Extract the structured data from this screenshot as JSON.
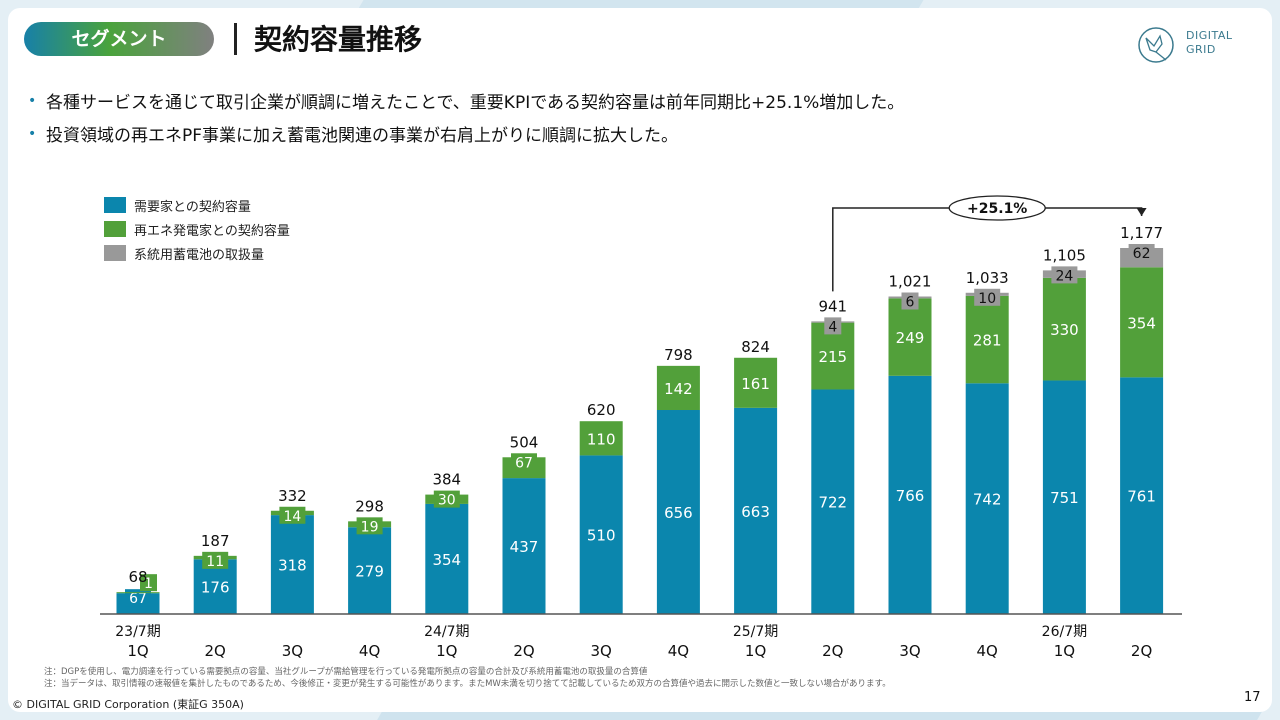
{
  "header": {
    "segment_label": "セグメント",
    "title": "契約容量推移",
    "logo_line1": "DIGITAL",
    "logo_line2": "GRID"
  },
  "bullets": [
    "各種サービスを通じて取引企業が順調に増えたことで、重要KPIである契約容量は前年同期比+25.1%増加した。",
    "投資領域の再エネPF事業に加え蓄電池関連の事業が右肩上がりに順調に拡大した。"
  ],
  "colors": {
    "demand": "#0b86ad",
    "renewable": "#52a03a",
    "battery": "#999999"
  },
  "chart_data": {
    "type": "bar",
    "stacked": true,
    "title": "",
    "xlabel": "",
    "ylabel": "",
    "ylim": [
      0,
      1200
    ],
    "grid": false,
    "legend_position": "top-left",
    "categories": [
      {
        "period": "23/7期",
        "quarter": "1Q"
      },
      {
        "period": "",
        "quarter": "2Q"
      },
      {
        "period": "",
        "quarter": "3Q"
      },
      {
        "period": "",
        "quarter": "4Q"
      },
      {
        "period": "24/7期",
        "quarter": "1Q"
      },
      {
        "period": "",
        "quarter": "2Q"
      },
      {
        "period": "",
        "quarter": "3Q"
      },
      {
        "period": "",
        "quarter": "4Q"
      },
      {
        "period": "25/7期",
        "quarter": "1Q"
      },
      {
        "period": "",
        "quarter": "2Q"
      },
      {
        "period": "",
        "quarter": "3Q"
      },
      {
        "period": "",
        "quarter": "4Q"
      },
      {
        "period": "26/7期",
        "quarter": "1Q"
      },
      {
        "period": "",
        "quarter": "2Q"
      }
    ],
    "series": [
      {
        "name": "需要家との契約容量",
        "key": "demand",
        "values": [
          67,
          176,
          318,
          279,
          354,
          437,
          510,
          656,
          663,
          722,
          766,
          742,
          751,
          761
        ]
      },
      {
        "name": "再エネ発電家との契約容量",
        "key": "renewable",
        "values": [
          1,
          11,
          14,
          19,
          30,
          67,
          110,
          142,
          161,
          215,
          249,
          281,
          330,
          354
        ]
      },
      {
        "name": "系統用蓄電池の取扱量",
        "key": "battery",
        "values": [
          null,
          null,
          null,
          null,
          null,
          null,
          null,
          null,
          null,
          4,
          6,
          10,
          24,
          62
        ]
      }
    ],
    "totals": [
      "68",
      "187",
      "332",
      "298",
      "384",
      "504",
      "620",
      "798",
      "824",
      "941",
      "1,021",
      "1,033",
      "1,105",
      "1,177"
    ],
    "annotation": {
      "label": "+25.1%",
      "from_index": 9,
      "to_index": 13
    }
  },
  "notes": [
    "注：DGPを使用し、電力調達を行っている需要拠点の容量、当社グループが需給管理を行っている発電所拠点の容量の合計及び系統用蓄電池の取扱量の合算値",
    "注：当データは、取引情報の速報値を集計したものであるため、今後修正・変更が発生する可能性があります。またMW未満を切り捨てて記載しているため双方の合算値や過去に開示した数値と一致しない場合があります。"
  ],
  "footer": {
    "copyright": "© DIGITAL GRID Corporation (東証G 350A)",
    "page_number": "17"
  }
}
